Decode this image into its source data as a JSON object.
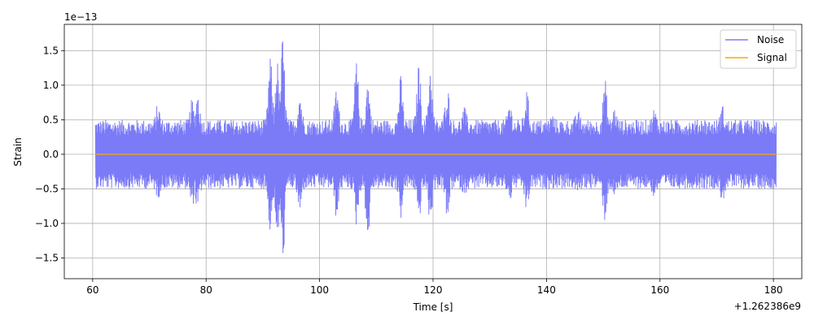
{
  "chart_data": {
    "type": "line",
    "title": "",
    "xlabel": "Time [s]",
    "ylabel": "Strain",
    "x_offset_label": "+1.262386e9",
    "y_scale_label": "1e−13",
    "xlim": [
      55,
      185
    ],
    "ylim": [
      -1.8,
      1.88
    ],
    "x_ticks": [
      60,
      80,
      100,
      120,
      140,
      160,
      180
    ],
    "x_tick_labels": [
      "60",
      "80",
      "100",
      "120",
      "140",
      "160",
      "180"
    ],
    "y_ticks": [
      -1.5,
      -1.0,
      -0.5,
      0.0,
      0.5,
      1.0,
      1.5
    ],
    "y_tick_labels": [
      "−1.5",
      "−1.0",
      "−0.5",
      "0.0",
      "0.5",
      "1.0",
      "1.5"
    ],
    "grid": true,
    "legend_position": "top-right",
    "series": [
      {
        "name": "Noise",
        "color": "#7b7bf8",
        "x_range": [
          60.5,
          180.5
        ],
        "baseline_amplitude": 0.5,
        "envelope_peaks": [
          {
            "x": 71.5,
            "top": 0.75,
            "bottom": -0.65
          },
          {
            "x": 77.5,
            "top": 0.8,
            "bottom": -0.8
          },
          {
            "x": 78.5,
            "top": 0.95,
            "bottom": -0.85
          },
          {
            "x": 91.3,
            "top": 1.45,
            "bottom": -1.15
          },
          {
            "x": 92.5,
            "top": 1.4,
            "bottom": -1.35
          },
          {
            "x": 93.5,
            "top": 1.72,
            "bottom": -1.63
          },
          {
            "x": 96.5,
            "top": 0.95,
            "bottom": -0.9
          },
          {
            "x": 103.0,
            "top": 1.0,
            "bottom": -0.95
          },
          {
            "x": 106.5,
            "top": 1.38,
            "bottom": -1.05
          },
          {
            "x": 108.5,
            "top": 1.1,
            "bottom": -1.3
          },
          {
            "x": 114.3,
            "top": 1.15,
            "bottom": -0.95
          },
          {
            "x": 117.5,
            "top": 1.35,
            "bottom": -1.0
          },
          {
            "x": 119.5,
            "top": 1.32,
            "bottom": -1.05
          },
          {
            "x": 122.5,
            "top": 1.05,
            "bottom": -1.0
          },
          {
            "x": 125.5,
            "top": 0.7,
            "bottom": -0.6
          },
          {
            "x": 133.5,
            "top": 0.8,
            "bottom": -0.7
          },
          {
            "x": 136.5,
            "top": 0.95,
            "bottom": -0.85
          },
          {
            "x": 141.0,
            "top": 0.6,
            "bottom": -0.5
          },
          {
            "x": 145.5,
            "top": 0.65,
            "bottom": -0.6
          },
          {
            "x": 150.3,
            "top": 1.1,
            "bottom": -0.98
          },
          {
            "x": 152.0,
            "top": 0.7,
            "bottom": -0.65
          },
          {
            "x": 159.0,
            "top": 0.68,
            "bottom": -0.65
          },
          {
            "x": 167.5,
            "top": 0.55,
            "bottom": -0.5
          },
          {
            "x": 171.0,
            "top": 0.72,
            "bottom": -0.7
          }
        ]
      },
      {
        "name": "Signal",
        "color": "#ffa500",
        "x": [
          60.5,
          180.5
        ],
        "y": [
          0.0,
          0.0
        ]
      }
    ]
  }
}
